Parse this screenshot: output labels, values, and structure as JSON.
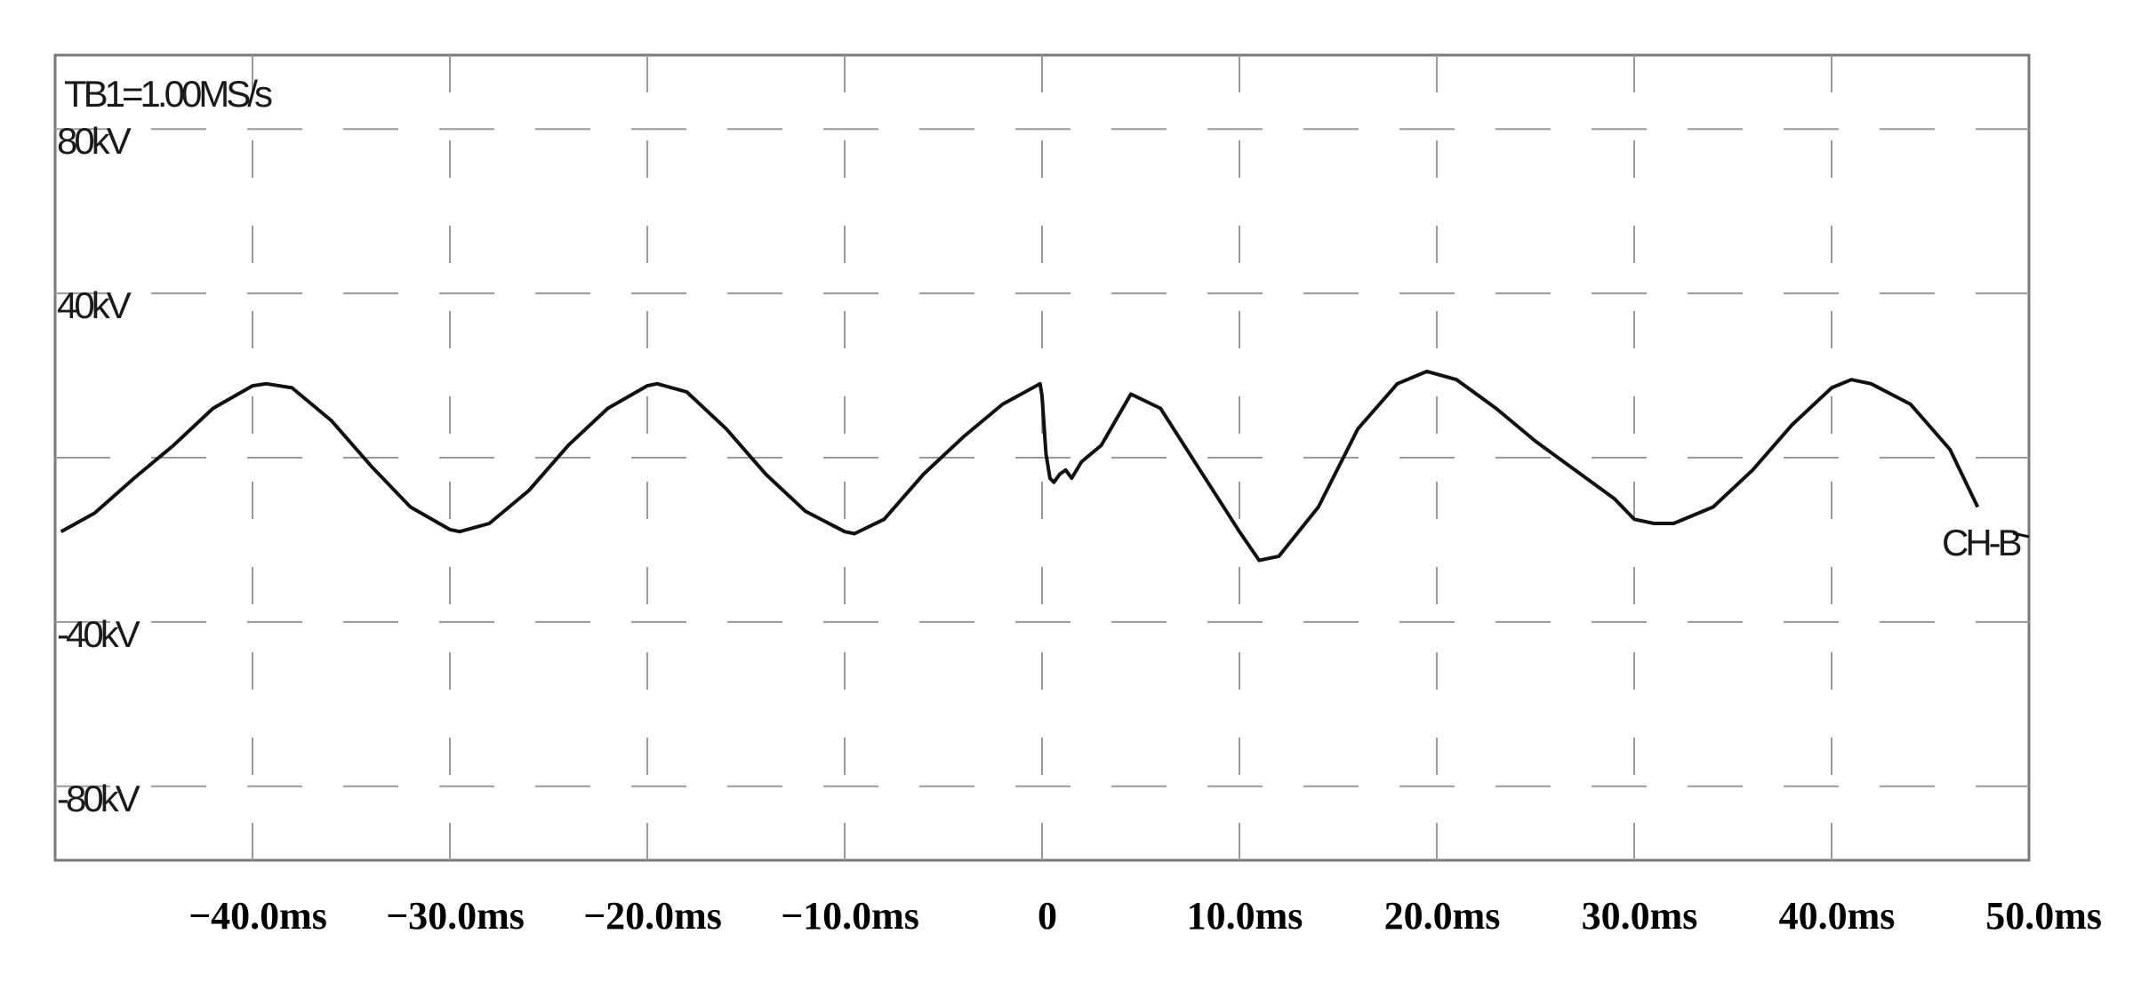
{
  "chart_data": {
    "type": "line",
    "timebase_label": "TB1=1.00MS/s",
    "channel_label": "CH-B",
    "x_unit": "ms",
    "y_unit": "kV",
    "xlim": [
      -50,
      50
    ],
    "ylim": [
      -98,
      98
    ],
    "grid": true,
    "x_grid_values": [
      -40,
      -30,
      -20,
      -10,
      0,
      10,
      20,
      30,
      40
    ],
    "y_grid_values": [
      80,
      40,
      0,
      -40,
      -80
    ],
    "x_tick_labels": [
      {
        "value": -40,
        "label": "−40.0ms"
      },
      {
        "value": -30,
        "label": "−30.0ms"
      },
      {
        "value": -20,
        "label": "−20.0ms"
      },
      {
        "value": -10,
        "label": "−10.0ms"
      },
      {
        "value": 0,
        "label": "0"
      },
      {
        "value": 10,
        "label": "10.0ms"
      },
      {
        "value": 20,
        "label": "20.0ms"
      },
      {
        "value": 30,
        "label": "30.0ms"
      },
      {
        "value": 40,
        "label": "40.0ms"
      },
      {
        "value": 50,
        "label": "50.0ms"
      }
    ],
    "y_tick_labels": [
      {
        "value": 80,
        "label": "80kV"
      },
      {
        "value": 40,
        "label": "40kV"
      },
      {
        "value": -40,
        "label": "-40kV"
      },
      {
        "value": -80,
        "label": "-80kV"
      }
    ],
    "series": [
      {
        "color": "#111111",
        "x": [
          -49.7,
          -48,
          -46,
          -44,
          -42,
          -40,
          -39.3,
          -38,
          -36,
          -34,
          -32,
          -30,
          -29.5,
          -28,
          -26,
          -24,
          -22,
          -20,
          -19.5,
          -18,
          -16,
          -14,
          -12,
          -10,
          -9.5,
          -8,
          -6,
          -4,
          -2,
          -0.1,
          0,
          0.2,
          0.4,
          0.6,
          0.9,
          1.2,
          1.5,
          2,
          3,
          4.5,
          6,
          8,
          10,
          11,
          12,
          14,
          16,
          18,
          19.5,
          21,
          23,
          25,
          27,
          29,
          30,
          31,
          32,
          34,
          36,
          38,
          40,
          41,
          42,
          44,
          46,
          47.4
        ],
        "y": [
          -18,
          -13.5,
          -5,
          3,
          12,
          17.5,
          18,
          17,
          9,
          -2,
          -12,
          -17.5,
          -18,
          -16,
          -8,
          3,
          12,
          17.5,
          18,
          16,
          7,
          -4,
          -13,
          -18,
          -18.5,
          -15,
          -4,
          5,
          13,
          18,
          15,
          1,
          -5,
          -6,
          -4,
          -3,
          -5,
          -1,
          3,
          15.5,
          12,
          -3,
          -18,
          -25,
          -24,
          -12,
          7,
          18,
          21,
          19,
          12,
          4,
          -3,
          -10,
          -15,
          -16,
          -16,
          -12,
          -3,
          8,
          17,
          19,
          18,
          13,
          2,
          -12
        ]
      }
    ]
  }
}
